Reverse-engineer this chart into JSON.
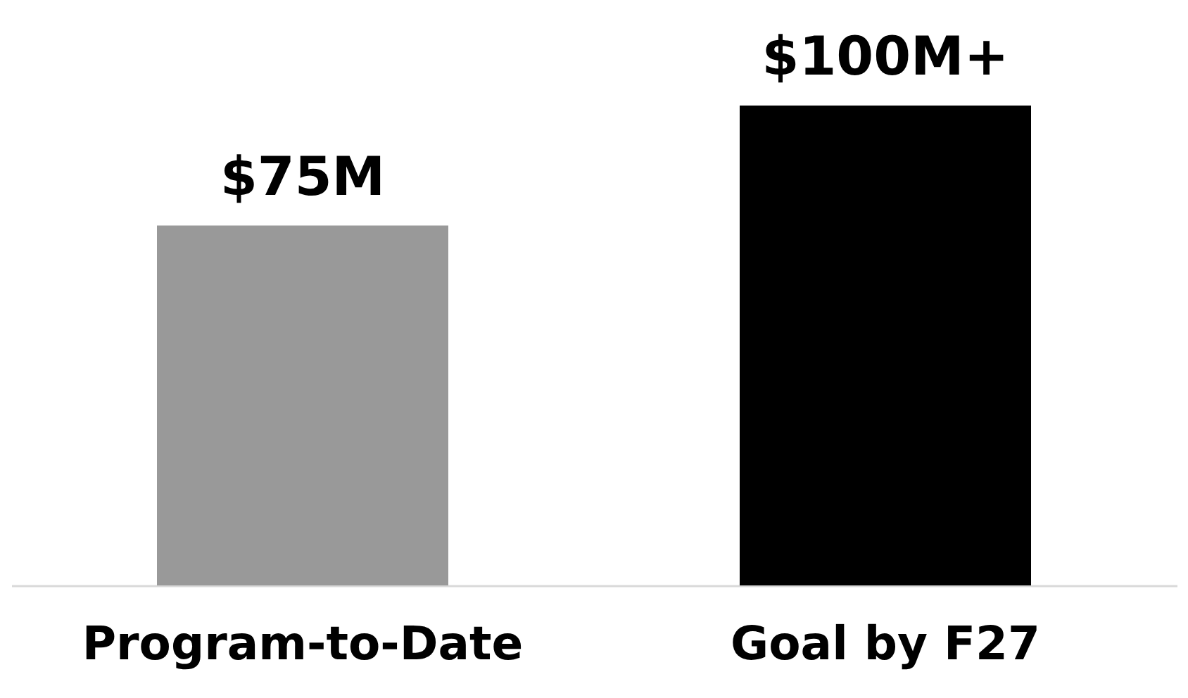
{
  "chart_data": {
    "type": "bar",
    "categories": [
      "Program-to-Date",
      "Goal by F27"
    ],
    "values": [
      75,
      100
    ],
    "colors": [
      "#999999",
      "#000000"
    ],
    "value_labels": [
      "$75M",
      "$100M+"
    ]
  }
}
